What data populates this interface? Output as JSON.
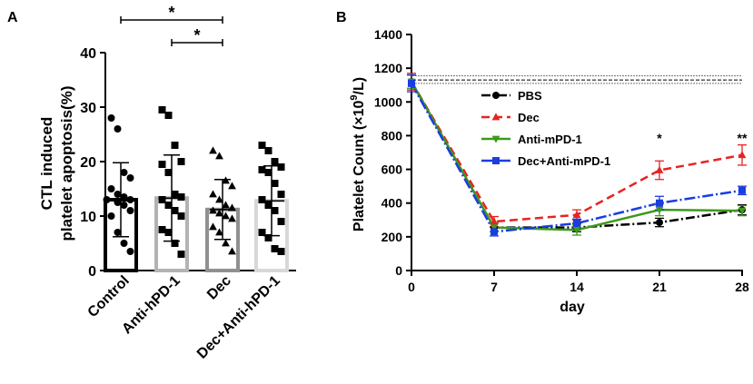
{
  "chart_data": [
    {
      "panel_label": "A",
      "type": "bar",
      "ylabel_line1": "CTL induced",
      "ylabel_line2": "platelet apoptosis(%)",
      "ylim": [
        0,
        40
      ],
      "yticks": [
        "0",
        "10",
        "20",
        "30",
        "40"
      ],
      "categories": [
        "Control",
        "Anti-hPD-1",
        "Dec",
        "Dec+Anti-hPD-1"
      ],
      "means": [
        13,
        13.3,
        11.2,
        12.8
      ],
      "sd": [
        6.8,
        7.9,
        5.5,
        6.4
      ],
      "bar_colors": [
        "#000000",
        "#b3b3b3",
        "#909090",
        "#d8d8d8"
      ],
      "markers": [
        "circle",
        "square",
        "triangle",
        "square"
      ],
      "points": [
        [
          28,
          26,
          18,
          17,
          15,
          14,
          13.5,
          13,
          13,
          12.5,
          12,
          11,
          10,
          7,
          5,
          3.5
        ],
        [
          29.5,
          28.5,
          23,
          20,
          19.5,
          18,
          14,
          13.5,
          13,
          12,
          11,
          10,
          7.5,
          7,
          5,
          3
        ],
        [
          22,
          21,
          16.5,
          15.5,
          14,
          13,
          12,
          11.5,
          11,
          10.5,
          10,
          9.5,
          8,
          7,
          5,
          3.5
        ],
        [
          23,
          22,
          20,
          19,
          18.5,
          18,
          16,
          14,
          13,
          12,
          11,
          9,
          7,
          6,
          4,
          3.5
        ]
      ],
      "significance": [
        {
          "from": 0,
          "to": 2,
          "label": "*"
        },
        {
          "from": 1,
          "to": 2,
          "label": "*"
        }
      ]
    },
    {
      "panel_label": "B",
      "type": "line",
      "ylabel": "Platelet  Count (×10",
      "ylabel_sup": "9",
      "ylabel_end": "/L)",
      "xlabel": "day",
      "x": [
        0,
        7,
        14,
        21,
        28
      ],
      "xticks": [
        "0",
        "7",
        "14",
        "21",
        "28"
      ],
      "ylim": [
        0,
        1400
      ],
      "yticks": [
        "0",
        "200",
        "400",
        "600",
        "800",
        "1000",
        "1200",
        "1400"
      ],
      "reference_band": [
        1110,
        1130,
        1155
      ],
      "series": [
        {
          "name": "PBS",
          "color": "#000000",
          "marker": "circle",
          "dash": "10 3 2 3",
          "values": [
            1120,
            255,
            255,
            285,
            360
          ],
          "errors": [
            40,
            25,
            25,
            25,
            30
          ]
        },
        {
          "name": "Dec",
          "color": "#e8231f",
          "marker": "triangle",
          "dash": "9 5",
          "values": [
            1120,
            290,
            330,
            595,
            685
          ],
          "errors": [
            50,
            30,
            30,
            55,
            60
          ]
        },
        {
          "name": "Anti-mPD-1",
          "color": "#3d9a1c",
          "marker": "triangle-down",
          "dash": "",
          "values": [
            1120,
            255,
            240,
            360,
            355
          ],
          "errors": [
            40,
            25,
            30,
            35,
            30
          ]
        },
        {
          "name": "Dec+Anti-mPD-1",
          "color": "#1a3ee0",
          "marker": "square",
          "dash": "12 3 2 3",
          "values": [
            1110,
            230,
            280,
            400,
            475
          ],
          "errors": [
            50,
            25,
            25,
            40,
            25
          ]
        }
      ],
      "annotations": [
        {
          "x": 21,
          "label": "*"
        },
        {
          "x": 28,
          "label": "**"
        }
      ]
    }
  ]
}
